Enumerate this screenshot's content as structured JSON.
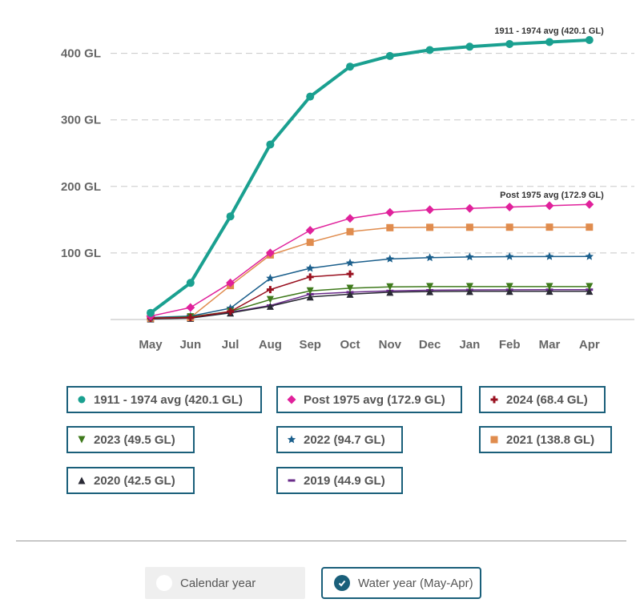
{
  "chart_data": {
    "type": "line",
    "categories": [
      "May",
      "Jun",
      "Jul",
      "Aug",
      "Sep",
      "Oct",
      "Nov",
      "Dec",
      "Jan",
      "Feb",
      "Mar",
      "Apr"
    ],
    "y_ticks": [
      "100 GL",
      "200 GL",
      "300 GL",
      "400 GL"
    ],
    "ylim": [
      0,
      400
    ],
    "grid": true,
    "legend_position": "bottom",
    "series": [
      {
        "name": "1911 - 1974 avg (420.1 GL)",
        "marker": "circle",
        "color": "#1aa090",
        "width": 4,
        "values": [
          10,
          55,
          155,
          263,
          335,
          380,
          396,
          405,
          410,
          414,
          417,
          420
        ],
        "label": "1911 - 1974 avg (420.1 GL)"
      },
      {
        "name": "Post 1975 avg (172.9 GL)",
        "marker": "diamond",
        "color": "#e0219b",
        "width": 1.5,
        "values": [
          5,
          18,
          55,
          100,
          134,
          152,
          161,
          165,
          167,
          169,
          171,
          173
        ],
        "label": "Post 1975 avg (172.9 GL)"
      },
      {
        "name": "2024 (68.4 GL)",
        "marker": "plus",
        "color": "#99101f",
        "width": 1.5,
        "values": [
          2,
          3,
          12,
          45,
          64,
          68.4,
          null,
          null,
          null,
          null,
          null,
          null
        ]
      },
      {
        "name": "2023 (49.5 GL)",
        "marker": "triangle-down",
        "color": "#3f7a1c",
        "width": 1.5,
        "values": [
          2,
          4,
          12,
          30,
          43,
          47,
          49,
          49.5,
          49.5,
          49.5,
          49.5,
          49.5
        ]
      },
      {
        "name": "2022 (94.7 GL)",
        "marker": "star",
        "color": "#1b5f8c",
        "width": 1.5,
        "values": [
          3,
          5,
          17,
          62,
          77,
          85,
          91,
          93,
          94,
          94.5,
          94.6,
          94.7
        ]
      },
      {
        "name": "2021 (138.8 GL)",
        "marker": "square",
        "color": "#e08c4e",
        "width": 1.5,
        "values": [
          2,
          3,
          51,
          97,
          116,
          132,
          138,
          138.5,
          138.6,
          138.7,
          138.8,
          138.8
        ]
      },
      {
        "name": "2020 (42.5 GL)",
        "marker": "triangle-up",
        "color": "#2a2a35",
        "width": 1.5,
        "values": [
          1,
          2,
          10,
          20,
          34,
          38,
          41,
          42,
          42.3,
          42.4,
          42.5,
          42.5
        ]
      },
      {
        "name": "2019 (44.9 GL)",
        "marker": "dash",
        "color": "#6a2c8a",
        "width": 1.5,
        "values": [
          1,
          3,
          11,
          21,
          38,
          41,
          43,
          44,
          44.5,
          44.7,
          44.8,
          44.9
        ]
      }
    ]
  },
  "controls": {
    "calendar_label": "Calendar year",
    "water_label": "Water year (May-Apr)"
  }
}
